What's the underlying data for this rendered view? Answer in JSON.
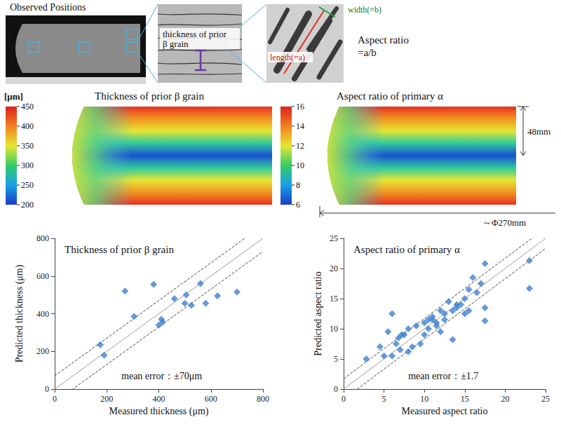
{
  "observed_positions": {
    "title": "Observed Positions"
  },
  "micrograph": {
    "label": [
      "thickness of prior",
      "β grain"
    ]
  },
  "needle": {
    "length_label": "length(=a)",
    "width_label": "width(=b)",
    "ratio_label": [
      "Aspect ratio",
      "=a/b"
    ]
  },
  "maps": [
    {
      "title": "Thickness of prior β grain",
      "unit": "[μm]",
      "color_range": [
        200,
        450
      ],
      "color_ticks": [
        200,
        250,
        300,
        350,
        400,
        450
      ]
    },
    {
      "title": "Aspect ratio of primary α",
      "color_range": [
        6,
        16
      ],
      "color_ticks": [
        6,
        8,
        10,
        12,
        14,
        16
      ],
      "height_label": "48mm",
      "diameter_label": "～Φ270mm"
    }
  ],
  "chart_data": [
    {
      "type": "scatter",
      "title": "Thickness of prior β grain",
      "x_label": "Measured thickness (μm)",
      "y_label": "Predicted thickness (μm)",
      "annotation": "mean error：±70μm",
      "error_band": 70,
      "x": [
        175,
        190,
        270,
        305,
        380,
        400,
        410,
        415,
        460,
        500,
        505,
        525,
        560,
        580,
        625,
        700
      ],
      "y": [
        235,
        180,
        520,
        385,
        555,
        340,
        370,
        355,
        480,
        455,
        500,
        445,
        560,
        455,
        495,
        515
      ],
      "color": "#3f7fd0",
      "marker": "diamond",
      "xlim": [
        0,
        800
      ],
      "ylim": [
        0,
        800
      ],
      "xticks": [
        0,
        200,
        400,
        600,
        800
      ],
      "yticks": [
        0,
        200,
        400,
        600,
        800
      ],
      "grid": false
    },
    {
      "type": "scatter",
      "title": "Aspect ratio of primary α",
      "x_label": "Measured aspect ratio",
      "y_label": "Predicted aspect ratio",
      "annotation": "mean error：±1.7",
      "error_band": 1.7,
      "x": [
        2.8,
        4.5,
        5,
        5.5,
        6,
        6,
        6.5,
        6.8,
        7,
        7.2,
        7.5,
        8,
        8,
        8.5,
        9,
        9.5,
        10,
        10,
        10.5,
        10.5,
        11,
        11,
        11.5,
        11.5,
        12,
        12,
        12.5,
        12.5,
        13,
        13.5,
        13.5,
        14,
        14,
        14.5,
        15,
        15,
        15.5,
        15.5,
        16,
        16.5,
        17,
        17.5,
        17.5,
        17.5,
        23,
        23
      ],
      "y": [
        5,
        7,
        5.5,
        9.5,
        5.5,
        12.5,
        7.5,
        8.5,
        6.5,
        9,
        9,
        10,
        6.2,
        7,
        10.5,
        7.5,
        11,
        9,
        11.5,
        10,
        12,
        11.5,
        10.5,
        11,
        13,
        9.5,
        11.5,
        12.5,
        14.5,
        8.2,
        13,
        14,
        13.5,
        14,
        12.5,
        15,
        16.5,
        13,
        18.5,
        16,
        17.5,
        11.3,
        13.5,
        20.8,
        21.3,
        16.7
      ],
      "color": "#3f7fd0",
      "marker": "diamond",
      "xlim": [
        0,
        25
      ],
      "ylim": [
        0,
        25
      ],
      "xticks": [
        0,
        5,
        10,
        15,
        20,
        25
      ],
      "yticks": [
        0,
        5,
        10,
        15,
        20,
        25
      ],
      "grid": false
    }
  ]
}
